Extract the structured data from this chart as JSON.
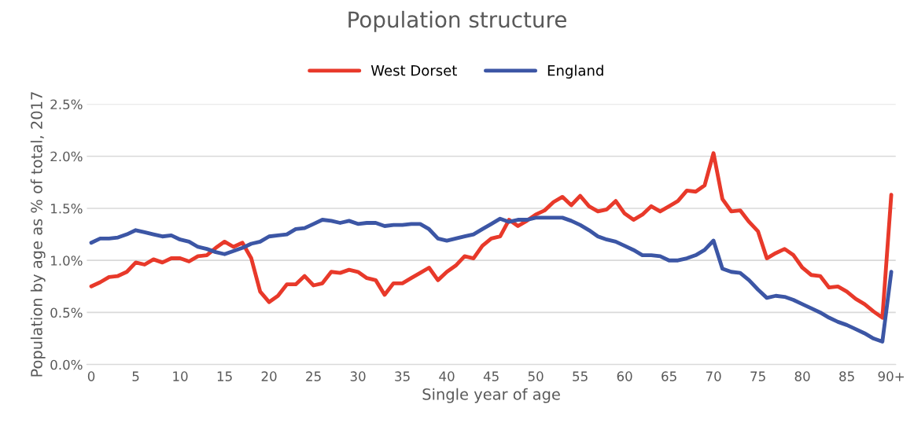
{
  "chart_data": {
    "type": "line",
    "title": "Population structure",
    "xlabel": "Single year of age",
    "ylabel": "Population by age as % of total, 2017",
    "categories": [
      "0",
      null,
      null,
      null,
      null,
      "5",
      null,
      null,
      null,
      null,
      "10",
      null,
      null,
      null,
      null,
      "15",
      null,
      null,
      null,
      null,
      "20",
      null,
      null,
      null,
      null,
      "25",
      null,
      null,
      null,
      null,
      "30",
      null,
      null,
      null,
      null,
      "35",
      null,
      null,
      null,
      null,
      "40",
      null,
      null,
      null,
      null,
      "45",
      null,
      null,
      null,
      null,
      "50",
      null,
      null,
      null,
      null,
      "55",
      null,
      null,
      null,
      null,
      "60",
      null,
      null,
      null,
      null,
      "65",
      null,
      null,
      null,
      null,
      "70",
      null,
      null,
      null,
      null,
      "75",
      null,
      null,
      null,
      null,
      "80",
      null,
      null,
      null,
      null,
      "85",
      null,
      null,
      null,
      null,
      "90+"
    ],
    "series": [
      {
        "name": "West Dorset",
        "color": "#e8392a",
        "values": [
          0.75,
          0.79,
          0.84,
          0.85,
          0.89,
          0.98,
          0.96,
          1.01,
          0.98,
          1.02,
          1.02,
          0.99,
          1.04,
          1.05,
          1.12,
          1.18,
          1.13,
          1.17,
          1.02,
          0.7,
          0.6,
          0.66,
          0.77,
          0.77,
          0.85,
          0.76,
          0.78,
          0.89,
          0.88,
          0.91,
          0.89,
          0.83,
          0.81,
          0.67,
          0.78,
          0.78,
          0.83,
          0.88,
          0.93,
          0.81,
          0.89,
          0.95,
          1.04,
          1.02,
          1.14,
          1.21,
          1.23,
          1.39,
          1.33,
          1.38,
          1.44,
          1.48,
          1.56,
          1.61,
          1.53,
          1.62,
          1.52,
          1.47,
          1.49,
          1.57,
          1.45,
          1.39,
          1.44,
          1.52,
          1.47,
          1.52,
          1.57,
          1.67,
          1.66,
          1.72,
          2.03,
          1.59,
          1.47,
          1.48,
          1.37,
          1.28,
          1.02,
          1.07,
          1.11,
          1.05,
          0.93,
          0.86,
          0.85,
          0.74,
          0.75,
          0.7,
          0.63,
          0.58,
          0.51,
          0.45,
          1.63
        ]
      },
      {
        "name": "England",
        "color": "#3c56a5",
        "values": [
          1.17,
          1.21,
          1.21,
          1.22,
          1.25,
          1.29,
          1.27,
          1.25,
          1.23,
          1.24,
          1.2,
          1.18,
          1.13,
          1.11,
          1.08,
          1.06,
          1.09,
          1.12,
          1.16,
          1.18,
          1.23,
          1.24,
          1.25,
          1.3,
          1.31,
          1.35,
          1.39,
          1.38,
          1.36,
          1.38,
          1.35,
          1.36,
          1.36,
          1.33,
          1.34,
          1.34,
          1.35,
          1.35,
          1.3,
          1.21,
          1.19,
          1.21,
          1.23,
          1.25,
          1.3,
          1.35,
          1.4,
          1.37,
          1.39,
          1.39,
          1.41,
          1.41,
          1.41,
          1.41,
          1.38,
          1.34,
          1.29,
          1.23,
          1.2,
          1.18,
          1.14,
          1.1,
          1.05,
          1.05,
          1.04,
          1.0,
          1.0,
          1.02,
          1.05,
          1.1,
          1.19,
          0.92,
          0.89,
          0.88,
          0.81,
          0.72,
          0.64,
          0.66,
          0.65,
          0.62,
          0.58,
          0.54,
          0.5,
          0.45,
          0.41,
          0.38,
          0.34,
          0.3,
          0.25,
          0.22,
          0.89
        ]
      }
    ],
    "ylim": [
      0,
      2.5
    ],
    "yticks": [
      {
        "value": 0,
        "label": "0.0%"
      },
      {
        "value": 0.5,
        "label": "0.5%"
      },
      {
        "value": 1.0,
        "label": "1.0%"
      },
      {
        "value": 1.5,
        "label": "1.5%"
      },
      {
        "value": 2.0,
        "label": "2.0%"
      },
      {
        "value": 2.5,
        "label": "2.5%"
      }
    ],
    "grid": "y",
    "legend": "top",
    "marker": "none",
    "line_style": "solid"
  }
}
